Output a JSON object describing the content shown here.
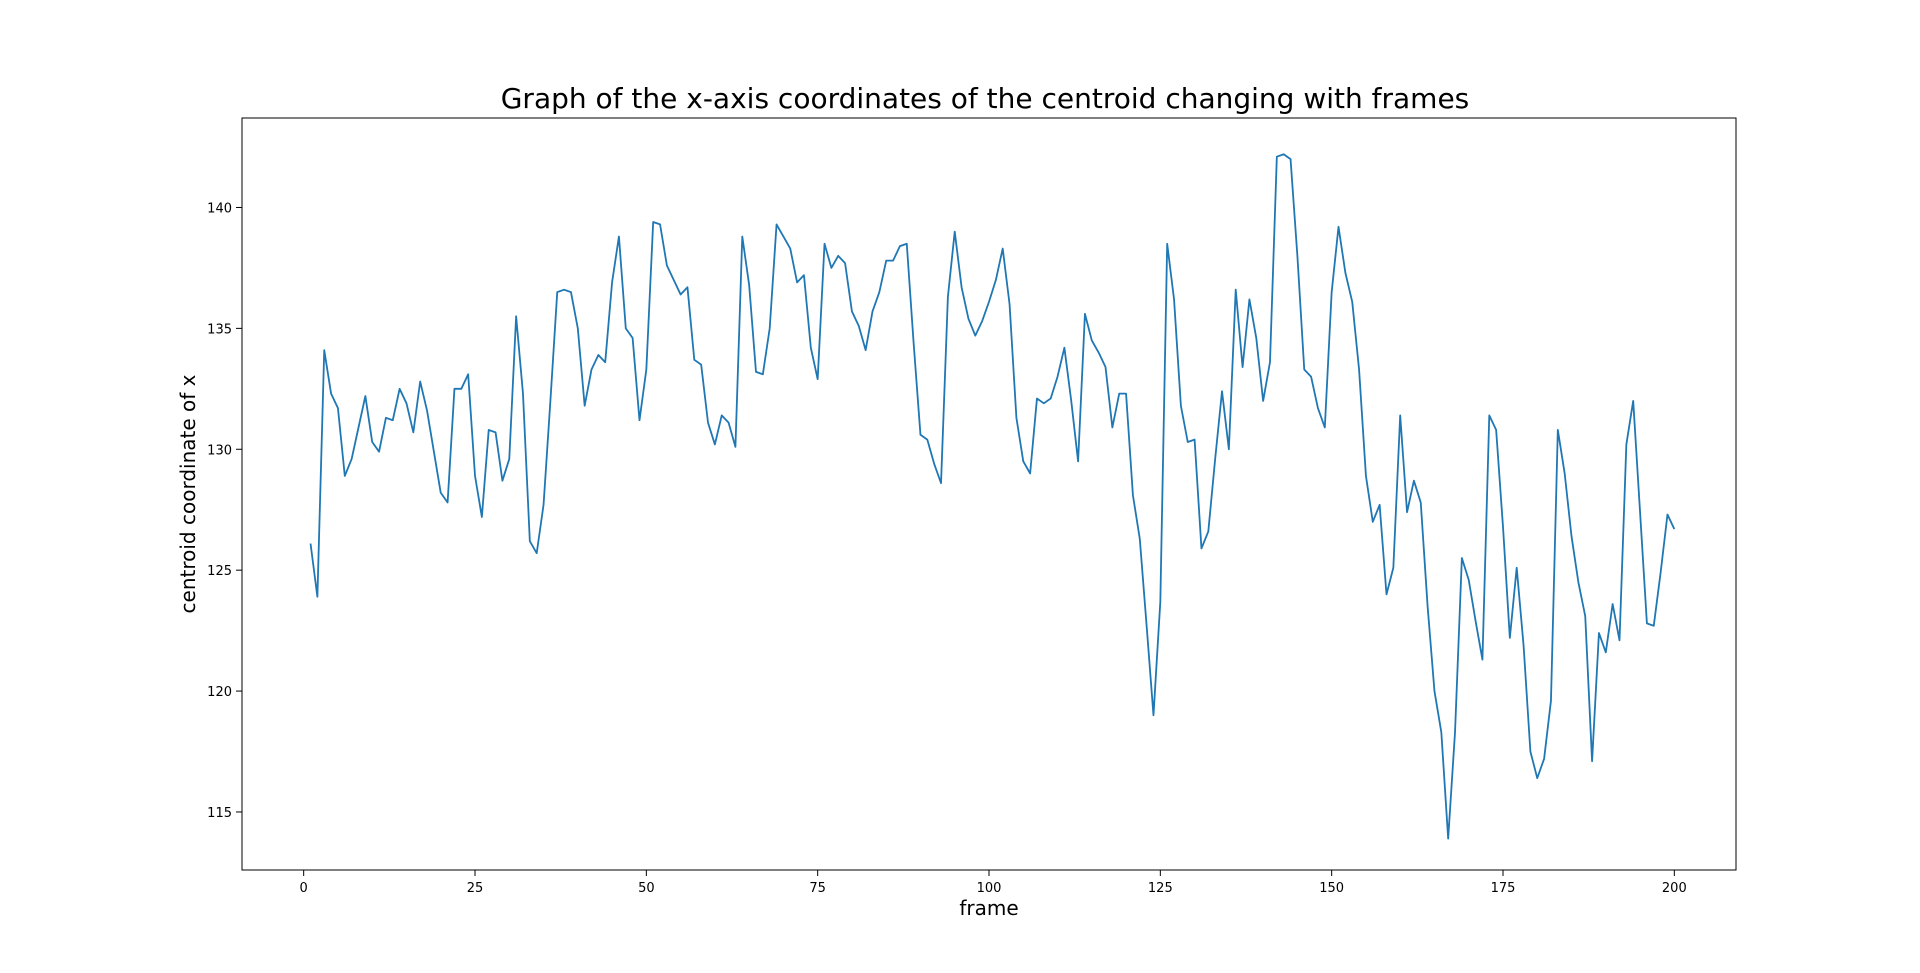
{
  "chart_data": {
    "type": "line",
    "title": "Graph of the x-axis coordinates of the centroid changing with frames",
    "xlabel": "frame",
    "ylabel": "centroid coordinate of x",
    "xlim": [
      -9,
      209
    ],
    "ylim": [
      112.6,
      143.7
    ],
    "xticks": [
      0,
      25,
      50,
      75,
      100,
      125,
      150,
      175,
      200
    ],
    "yticks": [
      115,
      120,
      125,
      130,
      135,
      140
    ],
    "grid": false,
    "color": "#1f77b4",
    "series": [
      {
        "x_start": 1,
        "values": [
          126.1,
          123.9,
          134.1,
          132.3,
          131.7,
          128.9,
          129.6,
          130.9,
          132.2,
          130.3,
          129.9,
          131.3,
          131.2,
          132.5,
          131.9,
          130.7,
          132.8,
          131.6,
          129.9,
          128.2,
          127.8,
          132.5,
          132.5,
          133.1,
          128.9,
          127.2,
          130.8,
          130.7,
          128.7,
          129.6,
          135.5,
          132.3,
          126.2,
          125.7,
          127.7,
          132.0,
          136.5,
          136.6,
          136.5,
          135.0,
          131.8,
          133.3,
          133.9,
          133.6,
          136.9,
          138.8,
          135.0,
          134.6,
          131.2,
          133.3,
          139.4,
          139.3,
          137.6,
          137.0,
          136.4,
          136.7,
          133.7,
          133.5,
          131.1,
          130.2,
          131.4,
          131.1,
          130.1,
          138.8,
          136.8,
          133.2,
          133.1,
          135.0,
          139.3,
          138.8,
          138.3,
          136.9,
          137.2,
          134.2,
          132.9,
          138.5,
          137.5,
          138.0,
          137.7,
          135.7,
          135.1,
          134.1,
          135.7,
          136.5,
          137.8,
          137.8,
          138.4,
          138.5,
          134.4,
          130.6,
          130.4,
          129.4,
          128.6,
          136.3,
          139.0,
          136.7,
          135.4,
          134.7,
          135.3,
          136.1,
          137.0,
          138.3,
          136.0,
          131.3,
          129.5,
          129.0,
          132.1,
          131.9,
          132.1,
          133.0,
          134.2,
          132.0,
          129.5,
          135.6,
          134.5,
          134.0,
          133.4,
          130.9,
          132.3,
          132.3,
          128.1,
          126.3,
          122.7,
          119.0,
          123.7,
          138.5,
          136.2,
          131.8,
          130.3,
          130.4,
          125.9,
          126.6,
          129.6,
          132.4,
          130.0,
          136.6,
          133.4,
          136.2,
          134.6,
          132.0,
          133.6,
          142.1,
          142.2,
          142.0,
          138.0,
          133.3,
          133.0,
          131.7,
          130.9,
          136.5,
          139.2,
          137.3,
          136.1,
          133.3,
          128.9,
          127.0,
          127.7,
          124.0,
          125.1,
          131.4,
          127.4,
          128.7,
          127.8,
          123.5,
          120.0,
          118.3,
          113.9,
          118.3,
          125.5,
          124.6,
          122.9,
          121.3,
          131.4,
          130.8,
          126.8,
          122.2,
          125.1,
          121.9,
          117.5,
          116.4,
          117.2,
          119.6,
          130.8,
          129.0,
          126.4,
          124.5,
          123.1,
          117.1,
          122.4,
          121.6,
          123.6,
          122.1,
          130.2,
          132.0,
          127.4,
          122.8,
          122.7,
          124.9,
          127.3,
          126.7
        ]
      }
    ]
  }
}
